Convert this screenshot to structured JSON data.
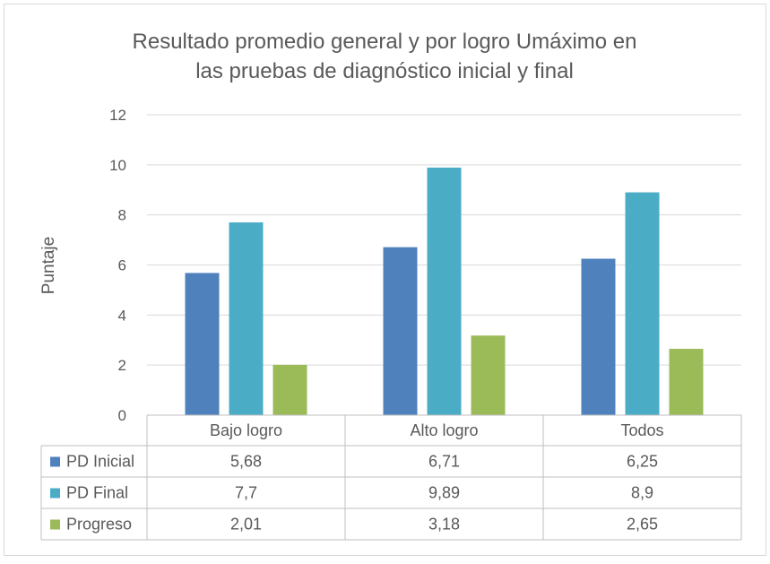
{
  "chart_data": {
    "type": "bar",
    "title_lines": [
      "Resultado promedio general y por logro Umáximo en",
      "las pruebas de diagnóstico inicial y final"
    ],
    "ylabel": "Puntaje",
    "xlabel": "",
    "ylim": [
      0,
      12
    ],
    "y_ticks": [
      "0",
      "2",
      "4",
      "6",
      "8",
      "10",
      "12"
    ],
    "y_tick_values": [
      0,
      2,
      4,
      6,
      8,
      10,
      12
    ],
    "grid": true,
    "legend": "data-table",
    "categories": [
      "Bajo logro",
      "Alto logro",
      "Todos"
    ],
    "series": [
      {
        "name": "PD Inicial",
        "color": "#4F81BD",
        "values": [
          5.68,
          6.71,
          6.25
        ],
        "labels": [
          "5,68",
          "6,71",
          "6,25"
        ]
      },
      {
        "name": "PD Final",
        "color": "#4BACC6",
        "values": [
          7.7,
          9.89,
          8.9
        ],
        "labels": [
          "7,7",
          "9,89",
          "8,9"
        ]
      },
      {
        "name": "Progreso",
        "color": "#9BBB59",
        "values": [
          2.01,
          3.18,
          2.65
        ],
        "labels": [
          "2,01",
          "3,18",
          "2,65"
        ]
      }
    ]
  }
}
